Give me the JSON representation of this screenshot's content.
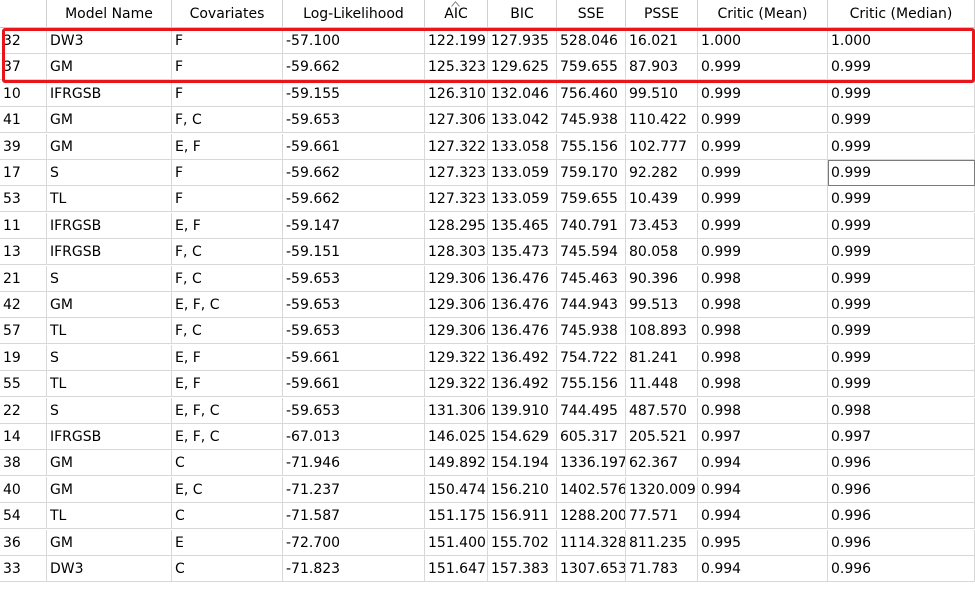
{
  "table": {
    "columns": [
      "",
      "Model Name",
      "Covariates",
      "Log-Likelihood",
      "AIC",
      "BIC",
      "SSE",
      "PSSE",
      "Critic (Mean)",
      "Critic (Median)"
    ],
    "rows": [
      [
        "32",
        "DW3",
        "F",
        "-57.100",
        "122.199",
        "127.935",
        "528.046",
        "16.021",
        "1.000",
        "1.000"
      ],
      [
        "37",
        "GM",
        "F",
        "-59.662",
        "125.323",
        "129.625",
        "759.655",
        "87.903",
        "0.999",
        "0.999"
      ],
      [
        "10",
        "IFRGSB",
        "F",
        "-59.155",
        "126.310",
        "132.046",
        "756.460",
        "99.510",
        "0.999",
        "0.999"
      ],
      [
        "41",
        "GM",
        "F, C",
        "-59.653",
        "127.306",
        "133.042",
        "745.938",
        "110.422",
        "0.999",
        "0.999"
      ],
      [
        "39",
        "GM",
        "E, F",
        "-59.661",
        "127.322",
        "133.058",
        "755.156",
        "102.777",
        "0.999",
        "0.999"
      ],
      [
        "17",
        "S",
        "F",
        "-59.662",
        "127.323",
        "133.059",
        "759.170",
        "92.282",
        "0.999",
        "0.999"
      ],
      [
        "53",
        "TL",
        "F",
        "-59.662",
        "127.323",
        "133.059",
        "759.655",
        "10.439",
        "0.999",
        "0.999"
      ],
      [
        "11",
        "IFRGSB",
        "E, F",
        "-59.147",
        "128.295",
        "135.465",
        "740.791",
        "73.453",
        "0.999",
        "0.999"
      ],
      [
        "13",
        "IFRGSB",
        "F, C",
        "-59.151",
        "128.303",
        "135.473",
        "745.594",
        "80.058",
        "0.999",
        "0.999"
      ],
      [
        "21",
        "S",
        "F, C",
        "-59.653",
        "129.306",
        "136.476",
        "745.463",
        "90.396",
        "0.998",
        "0.999"
      ],
      [
        "42",
        "GM",
        "E, F, C",
        "-59.653",
        "129.306",
        "136.476",
        "744.943",
        "99.513",
        "0.998",
        "0.999"
      ],
      [
        "57",
        "TL",
        "F, C",
        "-59.653",
        "129.306",
        "136.476",
        "745.938",
        "108.893",
        "0.998",
        "0.999"
      ],
      [
        "19",
        "S",
        "E, F",
        "-59.661",
        "129.322",
        "136.492",
        "754.722",
        "81.241",
        "0.998",
        "0.999"
      ],
      [
        "55",
        "TL",
        "E, F",
        "-59.661",
        "129.322",
        "136.492",
        "755.156",
        "11.448",
        "0.998",
        "0.999"
      ],
      [
        "22",
        "S",
        "E, F, C",
        "-59.653",
        "131.306",
        "139.910",
        "744.495",
        "487.570",
        "0.998",
        "0.998"
      ],
      [
        "14",
        "IFRGSB",
        "E, F, C",
        "-67.013",
        "146.025",
        "154.629",
        "605.317",
        "205.521",
        "0.997",
        "0.997"
      ],
      [
        "38",
        "GM",
        "C",
        "-71.946",
        "149.892",
        "154.194",
        "1336.197",
        "62.367",
        "0.994",
        "0.996"
      ],
      [
        "40",
        "GM",
        "E, C",
        "-71.237",
        "150.474",
        "156.210",
        "1402.576",
        "1320.009",
        "0.994",
        "0.996"
      ],
      [
        "54",
        "TL",
        "C",
        "-71.587",
        "151.175",
        "156.911",
        "1288.200",
        "77.571",
        "0.994",
        "0.996"
      ],
      [
        "36",
        "GM",
        "E",
        "-72.700",
        "151.400",
        "155.702",
        "1114.328",
        "811.235",
        "0.995",
        "0.996"
      ],
      [
        "33",
        "DW3",
        "C",
        "-71.823",
        "151.647",
        "157.383",
        "1307.653",
        "71.783",
        "0.994",
        "0.996"
      ]
    ],
    "sorted_column": "AIC",
    "sort_direction": "ascending",
    "sort_icon": "sort-ascending-icon",
    "selected_cell": {
      "row": 5,
      "column": "Critic (Median)"
    },
    "highlighted_rows": [
      0,
      1
    ],
    "highlight_color": "#e8161b"
  }
}
